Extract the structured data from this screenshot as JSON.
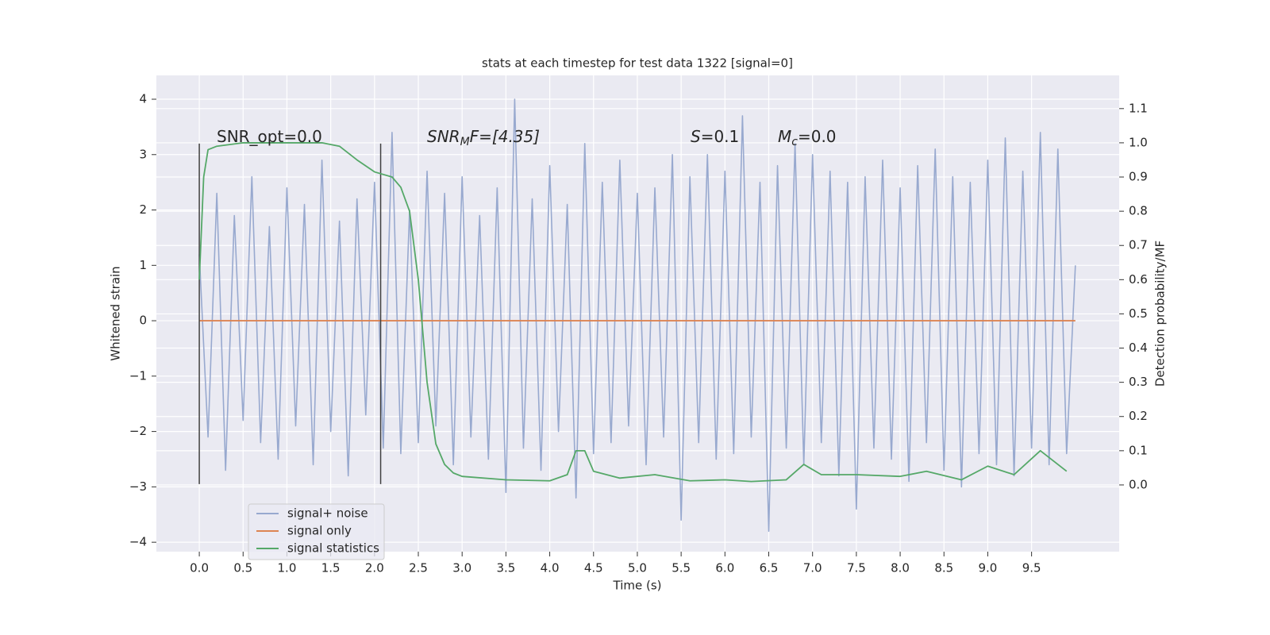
{
  "chart_data": {
    "type": "line",
    "title": "stats at each timestep for test data 1322 [signal=0]",
    "xlabel": "Time (s)",
    "ylabel": "Whitened strain",
    "y2label": "Detection probability/MF",
    "xlim": [
      -0.49,
      10.5
    ],
    "ylim": [
      -4.17,
      4.43
    ],
    "y2lim": [
      -0.195,
      1.197
    ],
    "xticks": [
      {
        "value": 0,
        "label": "0.0"
      },
      0.5,
      {
        "value": 1,
        "label": "1.0"
      },
      1.5,
      {
        "value": 2,
        "label": "2.0"
      },
      2.5,
      {
        "value": 3,
        "label": "3.0"
      },
      3.5,
      {
        "value": 4,
        "label": "4.0"
      },
      4.5,
      {
        "value": 5,
        "label": "5.0"
      },
      5.5,
      {
        "value": 6,
        "label": "6.0"
      },
      6.5,
      {
        "value": 7,
        "label": "7.0"
      },
      7.5,
      {
        "value": 8,
        "label": "8.0"
      },
      8.5,
      {
        "value": 9,
        "label": "9.0"
      },
      9.5
    ],
    "yticks": [
      {
        "value": -4,
        "label": "−4"
      },
      {
        "value": -3,
        "label": "−3"
      },
      {
        "value": -2,
        "label": "−2"
      },
      {
        "value": -1,
        "label": "−1"
      },
      0,
      1,
      2,
      3,
      4
    ],
    "y2ticks": [
      {
        "value": 0,
        "label": "0.0"
      },
      0.1,
      0.2,
      0.3,
      0.4,
      0.5,
      0.6,
      0.7,
      0.8,
      0.9,
      {
        "value": 1,
        "label": "1.0"
      },
      1.1
    ],
    "grid": true,
    "legend": "lower left",
    "annotations": [
      {
        "text": "SNR_opt=0.0"
      },
      {
        "text": "SNR",
        "sub": "M",
        "after": "F=[4.35]"
      },
      {
        "text": "S",
        "after": "=0.1"
      },
      {
        "text": "M",
        "sub": "c",
        "after": "=0.0"
      }
    ],
    "vlines": {
      "x": [
        0,
        2.07
      ],
      "ymin": -2.95,
      "ymax": 3.2,
      "color": "#404040"
    },
    "series": [
      {
        "name": "signal+ noise",
        "color": "#98a9cf",
        "x": [
          0,
          0.1,
          0.2,
          0.3,
          0.4,
          0.5,
          0.6,
          0.7,
          0.8,
          0.9,
          1,
          1.1,
          1.2,
          1.3,
          1.4,
          1.5,
          1.6,
          1.7,
          1.8,
          1.9,
          2,
          2.1,
          2.2,
          2.3,
          2.4,
          2.5,
          2.6,
          2.7,
          2.8,
          2.9,
          3,
          3.1,
          3.2,
          3.3,
          3.4,
          3.5,
          3.6,
          3.7,
          3.8,
          3.9,
          4,
          4.1,
          4.2,
          4.3,
          4.4,
          4.5,
          4.6,
          4.7,
          4.8,
          4.9,
          5,
          5.1,
          5.2,
          5.3,
          5.4,
          5.5,
          5.6,
          5.7,
          5.8,
          5.9,
          6,
          6.1,
          6.2,
          6.3,
          6.4,
          6.5,
          6.6,
          6.7,
          6.8,
          6.9,
          7,
          7.1,
          7.2,
          7.3,
          7.4,
          7.5,
          7.6,
          7.7,
          7.8,
          7.9,
          8,
          8.1,
          8.2,
          8.3,
          8.4,
          8.5,
          8.6,
          8.7,
          8.8,
          8.9,
          9,
          9.1,
          9.2,
          9.3,
          9.4,
          9.5,
          9.6,
          9.7,
          9.8,
          9.9,
          10
        ],
        "values": [
          1.2,
          -2.1,
          2.3,
          -2.7,
          1.9,
          -1.8,
          2.6,
          -2.2,
          1.7,
          -2.5,
          2.4,
          -1.9,
          2.1,
          -2.6,
          2.9,
          -2.0,
          1.8,
          -2.8,
          2.2,
          -1.7,
          2.5,
          -2.3,
          3.4,
          -2.4,
          2.0,
          -2.2,
          2.7,
          -1.9,
          2.3,
          -2.6,
          2.6,
          -2.1,
          1.9,
          -2.5,
          2.4,
          -3.1,
          4.0,
          -2.3,
          2.2,
          -2.7,
          2.8,
          -2.0,
          2.1,
          -3.2,
          3.2,
          -2.4,
          2.5,
          -2.2,
          2.9,
          -1.9,
          2.3,
          -2.6,
          2.4,
          -2.1,
          3.0,
          -3.6,
          2.6,
          -2.2,
          3.0,
          -2.5,
          2.7,
          -2.4,
          3.7,
          -2.1,
          2.5,
          -3.8,
          2.8,
          -2.3,
          3.2,
          -2.6,
          3.0,
          -2.2,
          2.7,
          -2.8,
          2.5,
          -3.4,
          2.6,
          -2.3,
          2.9,
          -2.5,
          2.4,
          -2.9,
          2.8,
          -2.2,
          3.1,
          -2.7,
          2.6,
          -3.0,
          2.5,
          -2.4,
          2.9,
          -2.6,
          3.3,
          -2.8,
          2.7,
          -2.3,
          3.4,
          -2.6,
          3.1,
          -2.4,
          1.0
        ]
      },
      {
        "name": "signal only",
        "color": "#dd8452",
        "x": [
          0,
          10
        ],
        "values": [
          0,
          0
        ]
      },
      {
        "name": "signal statistics",
        "color": "#55a868",
        "axis": "y2",
        "x": [
          0,
          0.05,
          0.1,
          0.2,
          0.5,
          1.0,
          1.4,
          1.6,
          1.8,
          2.0,
          2.2,
          2.3,
          2.4,
          2.5,
          2.6,
          2.7,
          2.8,
          2.9,
          3.0,
          3.5,
          4.0,
          4.2,
          4.3,
          4.4,
          4.5,
          4.8,
          5.2,
          5.6,
          6.0,
          6.3,
          6.7,
          6.9,
          7.1,
          7.5,
          8.0,
          8.3,
          8.7,
          9.0,
          9.3,
          9.6,
          9.9
        ],
        "values": [
          0.6,
          0.9,
          0.98,
          0.99,
          1.0,
          1.0,
          1.0,
          0.99,
          0.95,
          0.915,
          0.9,
          0.87,
          0.8,
          0.6,
          0.3,
          0.12,
          0.06,
          0.035,
          0.025,
          0.015,
          0.012,
          0.03,
          0.1,
          0.1,
          0.04,
          0.02,
          0.03,
          0.012,
          0.015,
          0.01,
          0.015,
          0.06,
          0.03,
          0.03,
          0.025,
          0.04,
          0.015,
          0.055,
          0.03,
          0.1,
          0.04
        ]
      }
    ]
  }
}
